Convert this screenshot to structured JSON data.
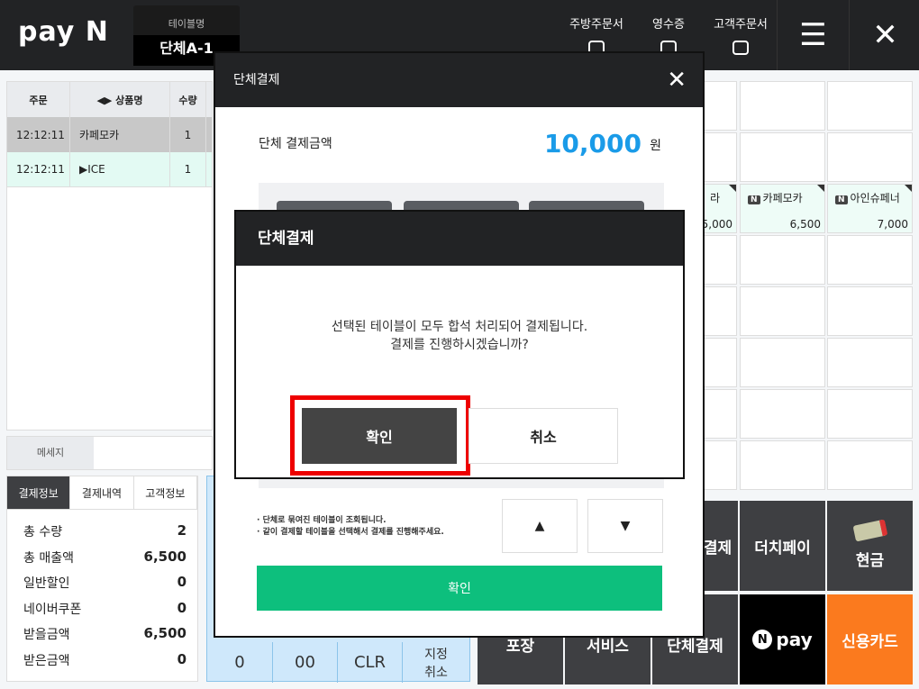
{
  "header": {
    "logo": "pay N",
    "table_label": "테이블명",
    "table_name": "단체A-1",
    "buttons": [
      {
        "label": "주방주문서",
        "icon": "printer-icon"
      },
      {
        "label": "영수증",
        "icon": "printer-icon"
      },
      {
        "label": "고객주문서",
        "icon": "printer-icon"
      }
    ],
    "menu_icon": "☰",
    "close_icon": "✕"
  },
  "order_table": {
    "columns": [
      "주문",
      "◀▶ 상품명",
      "수량"
    ],
    "rows": [
      {
        "time": "12:12:11",
        "name": "카페모카",
        "qty": "1"
      },
      {
        "time": "12:12:11",
        "name": "▶ICE",
        "qty": "1"
      }
    ]
  },
  "message": {
    "label": "메세지"
  },
  "info_tabs": [
    "결제정보",
    "결제내역",
    "고객정보"
  ],
  "payment_info": [
    {
      "label": "총 수량",
      "value": "2"
    },
    {
      "label": "총 매출액",
      "value": "6,500"
    },
    {
      "label": "일반할인",
      "value": "0"
    },
    {
      "label": "네이버쿠폰",
      "value": "0"
    },
    {
      "label": "받을금액",
      "value": "6,500"
    },
    {
      "label": "받은금액",
      "value": "0"
    }
  ],
  "numpad": [
    "0",
    "00",
    "CLR",
    "지정\n취소"
  ],
  "products": [
    {
      "name": "라",
      "price": "5,000"
    },
    {
      "name": "카페모카",
      "price": "6,500"
    },
    {
      "name": "아인슈페너",
      "price": "7,000"
    }
  ],
  "pay_buttons": {
    "split": "결제",
    "dutch": "더치페이",
    "cash": "현금",
    "pack": "포장",
    "service": "서비스",
    "group": "단체결제",
    "npay": "pay",
    "card": "신용카드"
  },
  "modal": {
    "title": "단체결제",
    "amount_label": "단체 결제금액",
    "amount": "10,000",
    "unit": "원",
    "notes": [
      "단체로 묶여진 테이블이 조회됩니다.",
      "같이 결제할 테이블을 선택해서 결제를 진행해주세요."
    ],
    "up": "▲",
    "down": "▼",
    "confirm": "확인"
  },
  "dialog": {
    "title": "단체결제",
    "line1": "선택된 테이블이 모두 합석 처리되어 결제됩니다.",
    "line2": "결제를 진행하시겠습니까?",
    "confirm": "확인",
    "cancel": "취소"
  },
  "colors": {
    "accent_blue": "#1a9be8",
    "green": "#0dbf7d",
    "card_orange": "#fb7a1e",
    "highlight_red": "#ee0000"
  }
}
